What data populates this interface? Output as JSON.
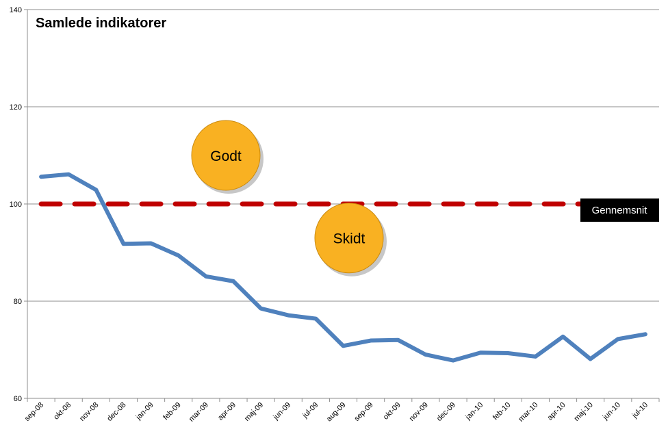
{
  "chart_data": {
    "type": "line",
    "title": "Samlede indikatorer",
    "xlabel": "",
    "ylabel": "",
    "ylim": [
      60,
      140
    ],
    "yticks": [
      60,
      80,
      100,
      120,
      140
    ],
    "grid": true,
    "categories": [
      "sep-08",
      "okt-08",
      "nov-08",
      "dec-08",
      "jan-09",
      "feb-09",
      "mar-09",
      "apr-09",
      "maj-09",
      "jun-09",
      "jul-09",
      "aug-09",
      "sep-09",
      "okt-09",
      "nov-09",
      "dec-09",
      "jan-10",
      "feb-10",
      "mar-10",
      "apr-10",
      "maj-10",
      "jun-10",
      "jul-10"
    ],
    "series": [
      {
        "values": [
          105.6,
          106.1,
          102.9,
          91.8,
          91.9,
          89.4,
          85.1,
          84.1,
          78.5,
          77.1,
          76.4,
          70.8,
          71.9,
          72.0,
          69.0,
          67.8,
          69.4,
          69.3,
          68.6,
          72.7,
          68.1,
          72.2,
          73.2
        ],
        "color": "#4f81bd",
        "style": "solid"
      },
      {
        "name": "Gennemsnit",
        "values": [
          100,
          100,
          100,
          100,
          100,
          100,
          100,
          100,
          100,
          100,
          100,
          100,
          100,
          100,
          100,
          100,
          100,
          100,
          100,
          100,
          100,
          100,
          100
        ],
        "color": "#c00000",
        "style": "dashed"
      }
    ],
    "annotations": [
      {
        "text": "Godt",
        "y": 110,
        "fill": "#f9b122"
      },
      {
        "text": "Skidt",
        "y": 93,
        "fill": "#f9b122"
      }
    ],
    "legend_label": "Gennemsnit",
    "legend_position": "right"
  }
}
